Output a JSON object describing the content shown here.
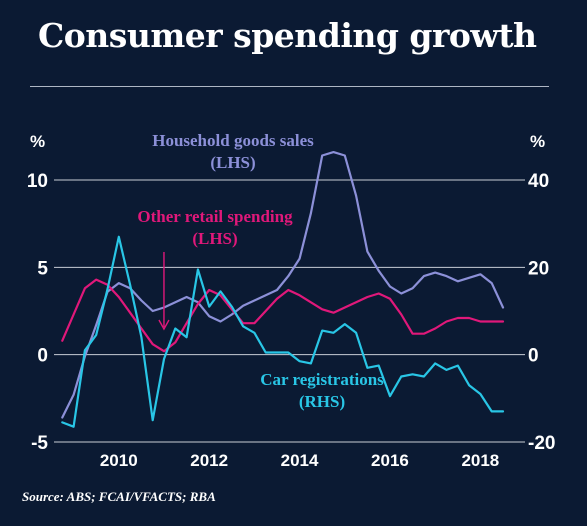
{
  "title": "Consumer spending growth",
  "source": "Source: ABS; FCAI/VFACTS; RBA",
  "colors": {
    "background": "#0b1a33",
    "text": "#ffffff",
    "grid": "#c8cdd6",
    "household": "#8c90d8",
    "retail": "#e0187a",
    "car": "#29c6e6"
  },
  "chart_data": {
    "type": "line",
    "x_ticks": [
      2010,
      2012,
      2014,
      2016,
      2018
    ],
    "xlim": [
      2008.7,
      2018.7
    ],
    "left_axis": {
      "unit_label": "%",
      "ticks": [
        10,
        5,
        0,
        -5
      ],
      "tick_labels": [
        "10",
        "5",
        "0",
        "-5"
      ],
      "ylim": [
        -5,
        10
      ]
    },
    "right_axis": {
      "unit_label": "%",
      "ticks": [
        40,
        20,
        0,
        -20
      ],
      "tick_labels": [
        "40",
        "20",
        "0",
        "-20"
      ],
      "ylim": [
        -20,
        40
      ]
    },
    "grid": "horizontal",
    "series": [
      {
        "id": "household",
        "name": "Household goods sales (LHS)",
        "label_lines": [
          "Household goods sales",
          "(LHS)"
        ],
        "axis": "left",
        "color": "#8c90d8",
        "x": [
          2008.75,
          2009.0,
          2009.25,
          2009.5,
          2009.75,
          2010.0,
          2010.25,
          2010.5,
          2010.75,
          2011.0,
          2011.25,
          2011.5,
          2011.75,
          2012.0,
          2012.25,
          2012.5,
          2012.75,
          2013.0,
          2013.25,
          2013.5,
          2013.75,
          2014.0,
          2014.25,
          2014.5,
          2014.75,
          2015.0,
          2015.25,
          2015.5,
          2015.75,
          2016.0,
          2016.25,
          2016.5,
          2016.75,
          2017.0,
          2017.25,
          2017.5,
          2017.75,
          2018.0,
          2018.25,
          2018.5
        ],
        "y": [
          -3.6,
          -2.3,
          -0.1,
          1.7,
          3.6,
          4.1,
          3.8,
          3.1,
          2.5,
          2.7,
          3.0,
          3.3,
          3.0,
          2.2,
          1.9,
          2.3,
          2.8,
          3.1,
          3.4,
          3.7,
          4.5,
          5.5,
          8.1,
          11.4,
          11.6,
          11.4,
          9.1,
          5.9,
          4.8,
          3.9,
          3.5,
          3.8,
          4.5,
          4.7,
          4.5,
          4.2,
          4.4,
          4.6,
          4.1,
          2.7
        ]
      },
      {
        "id": "retail",
        "name": "Other retail spending (LHS)",
        "label_lines": [
          "Other retail spending",
          "(LHS)"
        ],
        "axis": "left",
        "color": "#e0187a",
        "x": [
          2008.75,
          2009.0,
          2009.25,
          2009.5,
          2009.75,
          2010.0,
          2010.25,
          2010.5,
          2010.75,
          2011.0,
          2011.25,
          2011.5,
          2011.75,
          2012.0,
          2012.25,
          2012.5,
          2012.75,
          2013.0,
          2013.25,
          2013.5,
          2013.75,
          2014.0,
          2014.25,
          2014.5,
          2014.75,
          2015.0,
          2015.25,
          2015.5,
          2015.75,
          2016.0,
          2016.25,
          2016.5,
          2016.75,
          2017.0,
          2017.25,
          2017.5,
          2017.75,
          2018.0,
          2018.25,
          2018.5
        ],
        "y": [
          0.8,
          2.3,
          3.8,
          4.3,
          4.0,
          3.3,
          2.4,
          1.5,
          0.6,
          0.2,
          0.7,
          1.8,
          2.9,
          3.7,
          3.4,
          2.6,
          1.8,
          1.8,
          2.5,
          3.2,
          3.7,
          3.4,
          3.0,
          2.6,
          2.4,
          2.7,
          3.0,
          3.3,
          3.5,
          3.2,
          2.3,
          1.2,
          1.2,
          1.5,
          1.9,
          2.1,
          2.1,
          1.9,
          1.9,
          1.9
        ]
      },
      {
        "id": "car",
        "name": "Car registrations (RHS)",
        "label_lines": [
          "Car registrations",
          "(RHS)"
        ],
        "axis": "right",
        "color": "#29c6e6",
        "x": [
          2008.75,
          2009.0,
          2009.25,
          2009.5,
          2009.75,
          2010.0,
          2010.25,
          2010.5,
          2010.75,
          2011.0,
          2011.25,
          2011.5,
          2011.75,
          2012.0,
          2012.25,
          2012.5,
          2012.75,
          2013.0,
          2013.25,
          2013.5,
          2013.75,
          2014.0,
          2014.25,
          2014.5,
          2014.75,
          2015.0,
          2015.25,
          2015.5,
          2015.75,
          2016.0,
          2016.25,
          2016.5,
          2016.75,
          2017.0,
          2017.25,
          2017.5,
          2017.75,
          2018.0,
          2018.25,
          2018.5
        ],
        "y": [
          -15.5,
          -16.5,
          1.0,
          4.5,
          15.0,
          27.0,
          16.0,
          4.0,
          -15.0,
          -1.0,
          6.0,
          4.0,
          19.5,
          11.0,
          14.5,
          11.0,
          6.5,
          5.0,
          0.5,
          0.5,
          0.5,
          -1.5,
          -2.0,
          5.5,
          5.0,
          7.0,
          5.0,
          -3.0,
          -2.5,
          -9.5,
          -5.0,
          -4.5,
          -5.0,
          -2.0,
          -3.5,
          -2.5,
          -7.0,
          -9.0,
          -13.0,
          -13.0
        ]
      }
    ],
    "annotations": [
      {
        "series": "retail",
        "text": "Other retail spending (LHS)",
        "arrow": true,
        "arrow_to_x": 2011.0
      }
    ]
  }
}
